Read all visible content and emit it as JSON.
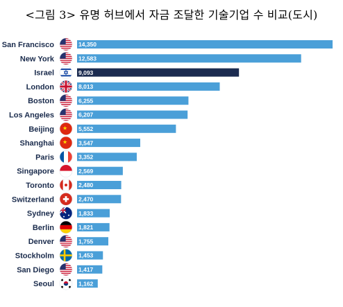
{
  "title": "<그림 3> 유명 허브에서 자금 조달한 기술기업 수 비교(도시)",
  "colors": {
    "bar": "#4a9fd8",
    "highlight": "#1b2b50",
    "label": "#1a2b4c"
  },
  "chart_data": {
    "type": "bar",
    "orientation": "horizontal",
    "title": "<그림 3> 유명 허브에서 자금 조달한 기술기업 수 비교(도시)",
    "xlabel": "",
    "ylabel": "",
    "categories": [
      "San Francisco",
      "New York",
      "Israel",
      "London",
      "Boston",
      "Los Angeles",
      "Beijing",
      "Shanghai",
      "Paris",
      "Singapore",
      "Toronto",
      "Switzerland",
      "Sydney",
      "Berlin",
      "Denver",
      "Stockholm",
      "San Diego",
      "Seoul"
    ],
    "values": [
      14350,
      12583,
      9093,
      8013,
      6255,
      6207,
      5552,
      3547,
      3352,
      2569,
      2480,
      2470,
      1833,
      1821,
      1755,
      1453,
      1417,
      1162
    ],
    "value_labels": [
      "14,350",
      "12,583",
      "9,093",
      "8,013",
      "6,255",
      "6,207",
      "5,552",
      "3,547",
      "3,352",
      "2,569",
      "2,480",
      "2,470",
      "1,833",
      "1,821",
      "1,755",
      "1,453",
      "1,417",
      "1,162"
    ],
    "flags": [
      "us-flag-icon",
      "us-flag-icon",
      "israel-flag-icon",
      "uk-flag-icon",
      "us-flag-icon",
      "us-flag-icon",
      "china-flag-icon",
      "china-flag-icon",
      "france-flag-icon",
      "singapore-flag-icon",
      "canada-flag-icon",
      "switzerland-flag-icon",
      "australia-flag-icon",
      "germany-flag-icon",
      "us-flag-icon",
      "sweden-flag-icon",
      "us-flag-icon",
      "korea-flag-icon"
    ],
    "highlight": "Israel",
    "xlim": [
      0,
      14350
    ]
  }
}
